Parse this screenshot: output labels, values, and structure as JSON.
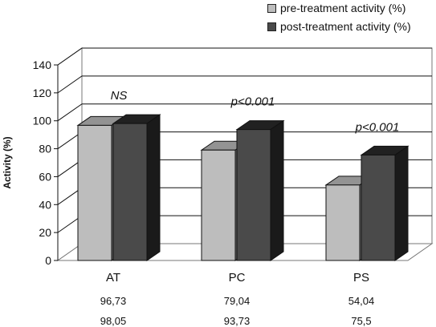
{
  "chart_data": {
    "type": "bar",
    "title": "",
    "xlabel": "",
    "ylabel": "Activity (%)",
    "ylim": [
      0,
      140
    ],
    "yticks": [
      0,
      20,
      40,
      60,
      80,
      100,
      120,
      140
    ],
    "categories": [
      "AT",
      "PC",
      "PS"
    ],
    "series": [
      {
        "name": "pre-treatment activity (%)",
        "values": [
          96.73,
          79.04,
          54.04
        ],
        "color": "#bdbdbd"
      },
      {
        "name": "post-treatment activity (%)",
        "values": [
          98.05,
          93.73,
          75.5
        ],
        "color": "#4a4a4a"
      }
    ],
    "value_labels": [
      [
        "96,73",
        "79,04",
        "54,04"
      ],
      [
        "98,05",
        "93,73",
        "75,5"
      ]
    ],
    "annotations": [
      "NS",
      "p<0.001",
      "p<0.001"
    ],
    "grid": true,
    "legend_position": "top-right",
    "style": "3d-bar"
  }
}
